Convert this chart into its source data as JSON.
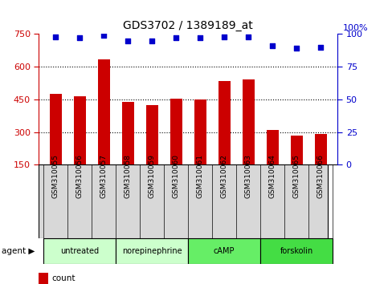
{
  "title": "GDS3702 / 1389189_at",
  "samples": [
    "GSM310055",
    "GSM310056",
    "GSM310057",
    "GSM310058",
    "GSM310059",
    "GSM310060",
    "GSM310061",
    "GSM310062",
    "GSM310063",
    "GSM310064",
    "GSM310065",
    "GSM310066"
  ],
  "counts": [
    475,
    465,
    635,
    440,
    425,
    455,
    448,
    535,
    540,
    310,
    285,
    290
  ],
  "percentile_ranks": [
    98,
    97,
    99,
    95,
    95,
    97,
    97,
    98,
    98,
    91,
    89,
    90
  ],
  "agents": [
    {
      "label": "untreated",
      "start": 0,
      "end": 3,
      "color": "#ccffcc"
    },
    {
      "label": "norepinephrine",
      "start": 3,
      "end": 6,
      "color": "#ccffcc"
    },
    {
      "label": "cAMP",
      "start": 6,
      "end": 9,
      "color": "#66ee66"
    },
    {
      "label": "forskolin",
      "start": 9,
      "end": 12,
      "color": "#44dd44"
    }
  ],
  "bar_color": "#cc0000",
  "dot_color": "#0000cc",
  "yticks_left": [
    150,
    300,
    450,
    600,
    750
  ],
  "yticks_right": [
    0,
    25,
    50,
    75,
    100
  ],
  "ylim_left": [
    150,
    750
  ],
  "ylim_right": [
    0,
    100
  ],
  "grid_color": "#000000",
  "title_color": "#000000",
  "tick_label_color_left": "#cc0000",
  "tick_label_color_right": "#0000cc",
  "legend_count_color": "#cc0000",
  "legend_pct_color": "#0000cc",
  "sample_box_color": "#d8d8d8",
  "bar_bottom": 150
}
